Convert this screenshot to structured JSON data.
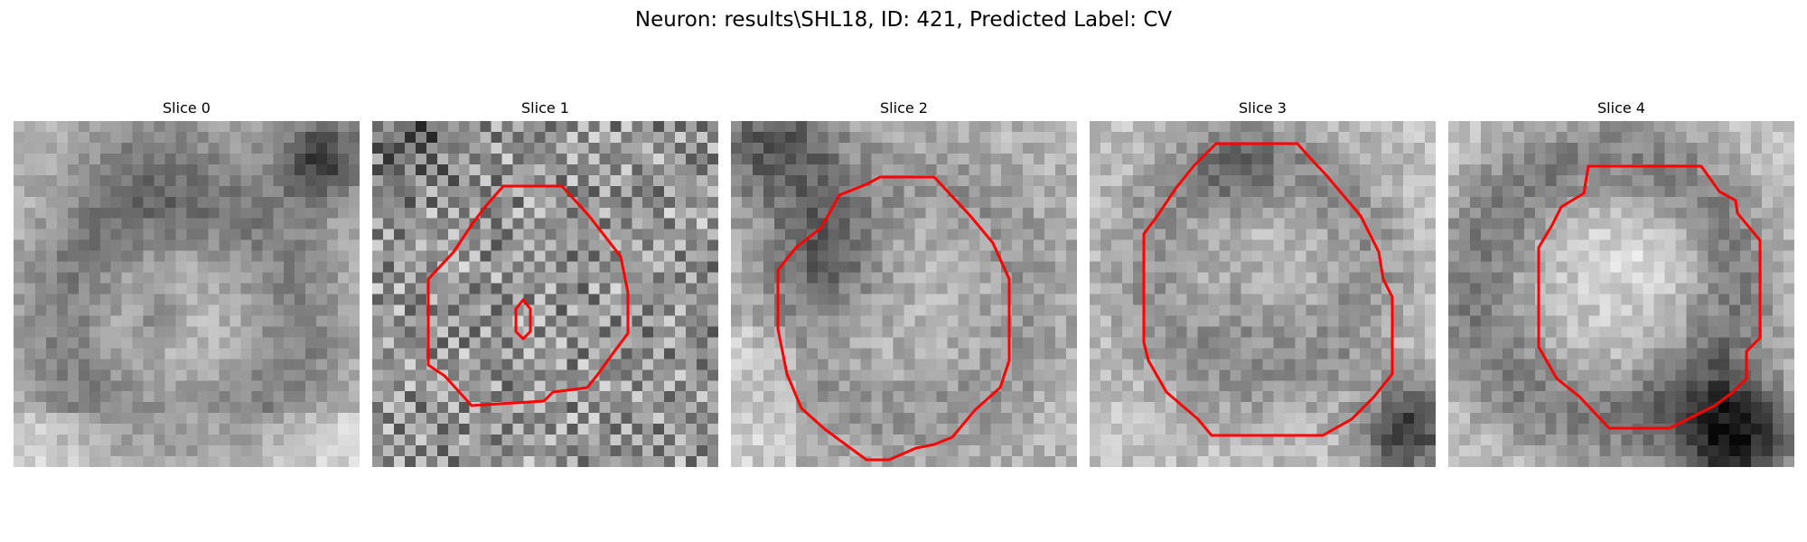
{
  "figure": {
    "title": "Neuron: results\\SHL18, ID: 421, Predicted Label: CV"
  },
  "slices": [
    {
      "title": "Slice 0",
      "has_contour": false
    },
    {
      "title": "Slice 1",
      "has_contour": true,
      "has_inner_contour": true
    },
    {
      "title": "Slice 2",
      "has_contour": true
    },
    {
      "title": "Slice 3",
      "has_contour": true
    },
    {
      "title": "Slice 4",
      "has_contour": true
    }
  ],
  "style": {
    "contour_color": "#ff0000",
    "colormap": "gray"
  }
}
